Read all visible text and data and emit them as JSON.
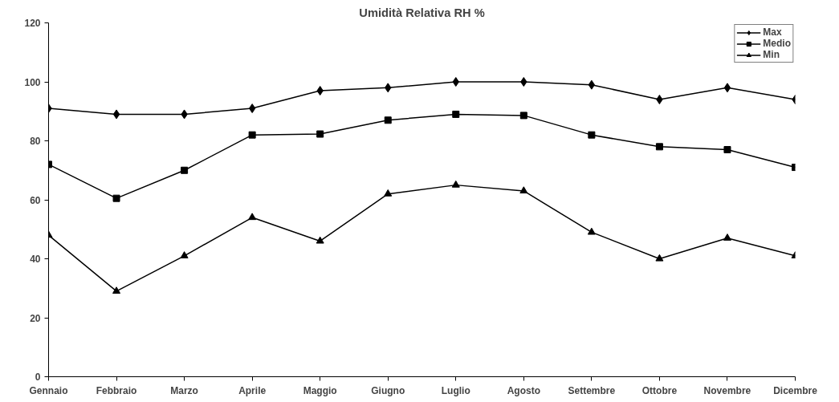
{
  "chart_data": {
    "type": "line",
    "title": "Umidità Relativa RH %",
    "categories": [
      "Gennaio",
      "Febbraio",
      "Marzo",
      "Aprile",
      "Maggio",
      "Giugno",
      "Luglio",
      "Agosto",
      "Settembre",
      "Ottobre",
      "Novembre",
      "Dicembre"
    ],
    "series": [
      {
        "name": "Max",
        "color": "#000000",
        "marker": "diamond",
        "values": [
          91,
          89,
          89,
          91,
          97,
          98,
          100,
          100,
          99,
          94,
          98,
          94
        ]
      },
      {
        "name": "Medio",
        "color": "#000000",
        "marker": "square",
        "values": [
          72,
          60.5,
          70,
          82,
          82.3,
          87,
          89,
          88.6,
          82,
          78,
          77,
          71
        ]
      },
      {
        "name": "Min",
        "color": "#000000",
        "marker": "triangle",
        "values": [
          48,
          29,
          41,
          54,
          46,
          62,
          65,
          63,
          49,
          40,
          47,
          41
        ]
      }
    ],
    "ylim": [
      0,
      120
    ],
    "yticks": [
      0,
      20,
      40,
      60,
      80,
      100,
      120
    ],
    "grid": false,
    "legend": "top right",
    "line_style": "solid"
  }
}
